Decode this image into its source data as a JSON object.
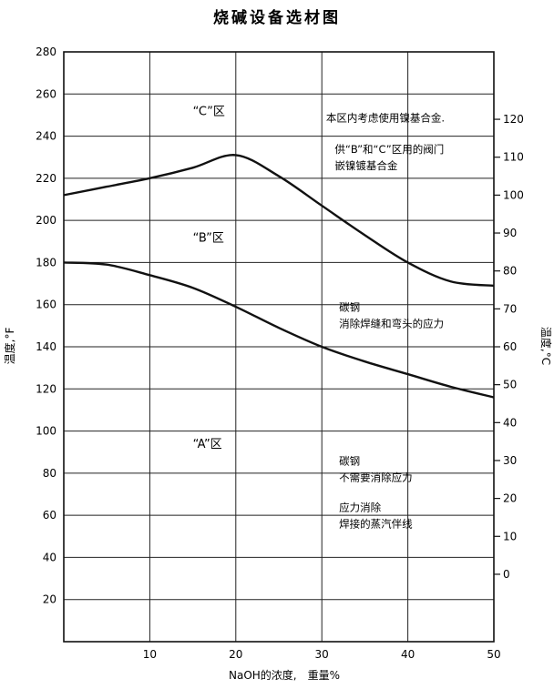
{
  "chart_data": {
    "type": "line",
    "title": "烧碱设备选材图",
    "xlabel": "NaOH的浓度,　重量%",
    "ylabel_left": "温度,°F",
    "ylabel_right": "温度,°C",
    "xlim": [
      0,
      50
    ],
    "ylim_left": [
      0,
      280
    ],
    "ylim_right_celsius": [
      -17.78,
      137.78
    ],
    "x_ticks": [
      10,
      20,
      30,
      40,
      50
    ],
    "y_ticks_left": [
      20,
      40,
      60,
      80,
      100,
      120,
      140,
      160,
      180,
      200,
      220,
      240,
      260,
      280
    ],
    "y_ticks_right": [
      0,
      10,
      20,
      30,
      40,
      50,
      60,
      70,
      80,
      90,
      100,
      110,
      120
    ],
    "grid": true,
    "series": [
      {
        "x": [
          0,
          5,
          10,
          15,
          20,
          25,
          30,
          35,
          40,
          45,
          50
        ],
        "y": [
          212,
          216,
          220,
          225,
          231,
          221,
          207,
          193,
          180,
          171,
          169
        ]
      },
      {
        "x": [
          0,
          5,
          10,
          15,
          20,
          25,
          30,
          35,
          40,
          45,
          50
        ],
        "y": [
          180,
          179,
          174,
          168,
          159,
          149,
          140,
          133,
          127,
          121,
          116
        ]
      }
    ],
    "zones": [
      {
        "label": "“C”区",
        "x": 15,
        "y": 250
      },
      {
        "label": "“B”区",
        "x": 15,
        "y": 190
      },
      {
        "label": "“A”区",
        "x": 15,
        "y": 92
      }
    ],
    "annotations": [
      {
        "lines": [
          "本区内考虑使用镍基合金."
        ],
        "x": 30.5,
        "y": 247
      },
      {
        "lines": [
          "供“B”和“C”区用的阀门",
          "嵌镍镀基合金"
        ],
        "x": 31.5,
        "y": 232
      },
      {
        "lines": [
          "碳钢",
          "消除焊缝和弯头的应力"
        ],
        "x": 32,
        "y": 157
      },
      {
        "lines": [
          "碳钢",
          "不需要消除应力"
        ],
        "x": 32,
        "y": 84
      },
      {
        "lines": [
          "应力消除",
          "焊接的蒸汽伴线"
        ],
        "x": 32,
        "y": 62
      }
    ]
  }
}
